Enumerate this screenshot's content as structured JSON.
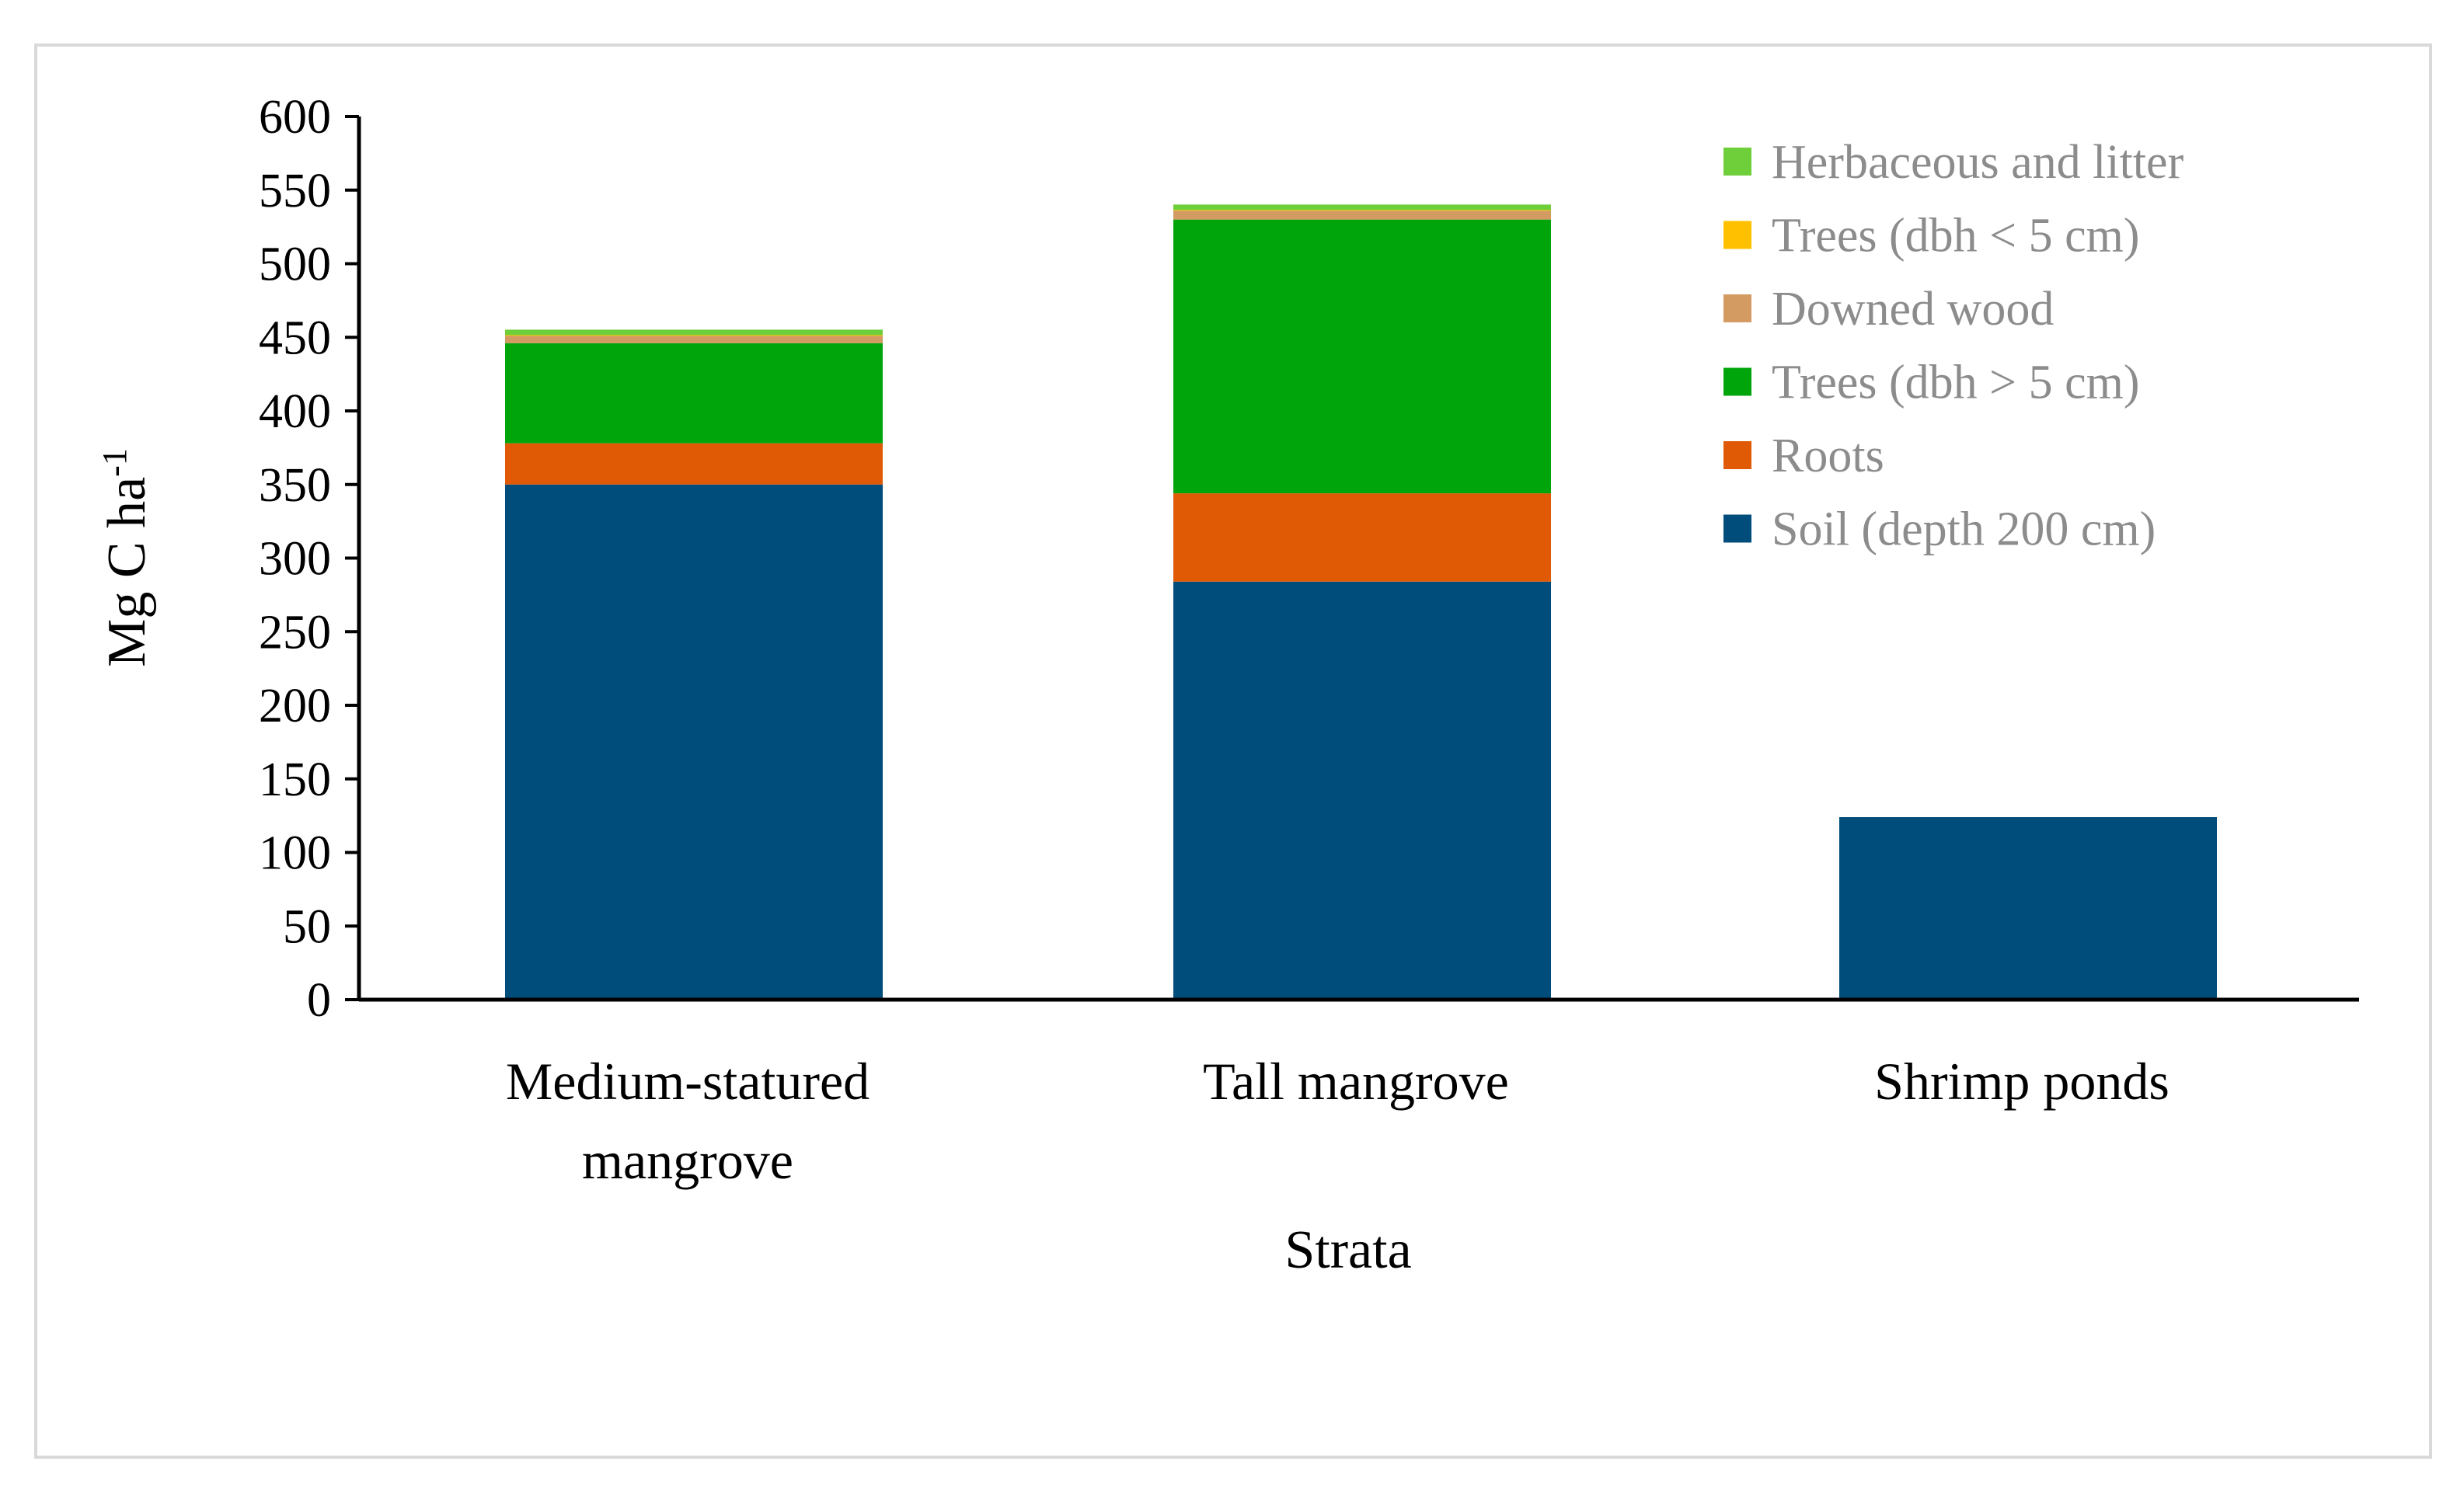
{
  "chart_data": {
    "type": "bar",
    "stacked": true,
    "title": "",
    "xlabel": "Strata",
    "ylabel": "Mg C ha",
    "ylabel_superscript": "-1",
    "ylim": [
      0,
      600
    ],
    "yticks": [
      0,
      50,
      100,
      150,
      200,
      250,
      300,
      350,
      400,
      450,
      500,
      550,
      600
    ],
    "grid": false,
    "legend_position": "top-right",
    "categories": [
      [
        "Medium-statured",
        "mangrove"
      ],
      [
        "Tall mangrove"
      ],
      [
        "Shrimp ponds"
      ]
    ],
    "series": [
      {
        "name": "Soil (depth 200 cm)",
        "color": "#004c7a",
        "values": [
          350,
          284,
          124
        ]
      },
      {
        "name": "Roots",
        "color": "#e05a05",
        "values": [
          28,
          60,
          0
        ]
      },
      {
        "name": "Trees (dbh > 5 cm)",
        "color": "#00a50c",
        "values": [
          68,
          186,
          0
        ]
      },
      {
        "name": "Downed wood",
        "color": "#d39a61",
        "values": [
          5,
          6,
          0
        ]
      },
      {
        "name": "Trees (dbh < 5 cm)",
        "color": "#ffc000",
        "values": [
          0.5,
          0.5,
          0
        ]
      },
      {
        "name": "Herbaceous and litter",
        "color": "#6fcf3b",
        "values": [
          0.3,
          0.3,
          0
        ]
      }
    ]
  }
}
